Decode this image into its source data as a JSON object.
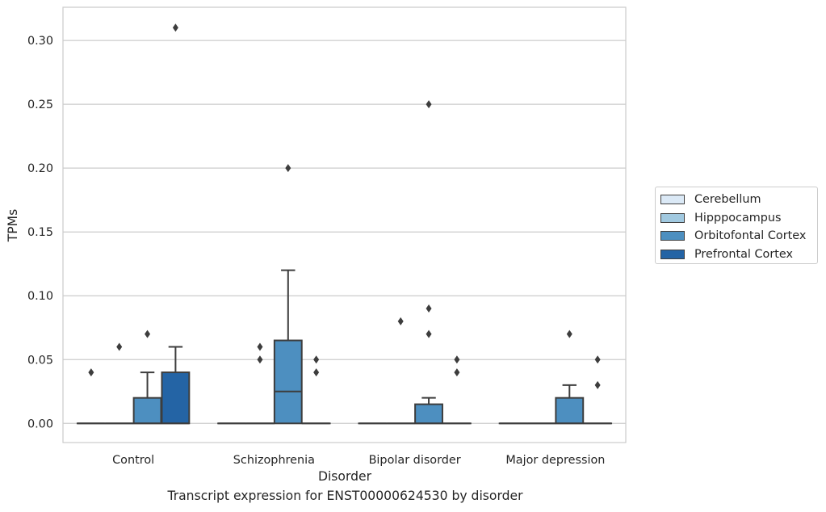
{
  "caption": "Transcript expression for ENST00000624530 by disorder",
  "chart_data": {
    "type": "box",
    "xlabel": "Disorder",
    "ylabel": "TPMs",
    "ylim": [
      -0.015,
      0.326
    ],
    "yticks": [
      "0.00",
      "0.05",
      "0.10",
      "0.15",
      "0.20",
      "0.25",
      "0.30"
    ],
    "grid": "horizontal",
    "legend_position": "right",
    "categories": [
      "Control",
      "Schizophrenia",
      "Bipolar disorder",
      "Major depression"
    ],
    "series": [
      {
        "name": "Cerebellum",
        "color": "#dbe9f6"
      },
      {
        "name": "Hipppocampus",
        "color": "#a1c9e0"
      },
      {
        "name": "Orbitofontal Cortex",
        "color": "#4d8fc0"
      },
      {
        "name": "Prefrontal Cortex",
        "color": "#2464a5"
      }
    ],
    "boxes": [
      {
        "category": 0,
        "series": 0,
        "q1": 0,
        "median": 0,
        "q3": 0,
        "whisker_low": 0,
        "whisker_high": 0,
        "outliers": [
          0.04
        ]
      },
      {
        "category": 0,
        "series": 1,
        "q1": 0,
        "median": 0,
        "q3": 0,
        "whisker_low": 0,
        "whisker_high": 0,
        "outliers": [
          0.06
        ]
      },
      {
        "category": 0,
        "series": 2,
        "q1": 0,
        "median": 0,
        "q3": 0.02,
        "whisker_low": 0,
        "whisker_high": 0.04,
        "outliers": [
          0.07
        ]
      },
      {
        "category": 0,
        "series": 3,
        "q1": 0,
        "median": 0,
        "q3": 0.04,
        "whisker_low": 0,
        "whisker_high": 0.06,
        "outliers": [
          0.31
        ]
      },
      {
        "category": 1,
        "series": 0,
        "q1": 0,
        "median": 0,
        "q3": 0,
        "whisker_low": 0,
        "whisker_high": 0,
        "outliers": []
      },
      {
        "category": 1,
        "series": 1,
        "q1": 0,
        "median": 0,
        "q3": 0,
        "whisker_low": 0,
        "whisker_high": 0,
        "outliers": [
          0.05,
          0.06
        ]
      },
      {
        "category": 1,
        "series": 2,
        "q1": 0,
        "median": 0.025,
        "q3": 0.065,
        "whisker_low": 0,
        "whisker_high": 0.12,
        "outliers": [
          0.2
        ]
      },
      {
        "category": 1,
        "series": 3,
        "q1": 0,
        "median": 0,
        "q3": 0,
        "whisker_low": 0,
        "whisker_high": 0,
        "outliers": [
          0.04,
          0.05
        ]
      },
      {
        "category": 2,
        "series": 0,
        "q1": 0,
        "median": 0,
        "q3": 0,
        "whisker_low": 0,
        "whisker_high": 0,
        "outliers": []
      },
      {
        "category": 2,
        "series": 1,
        "q1": 0,
        "median": 0,
        "q3": 0,
        "whisker_low": 0,
        "whisker_high": 0,
        "outliers": [
          0.08
        ]
      },
      {
        "category": 2,
        "series": 2,
        "q1": 0,
        "median": 0,
        "q3": 0.015,
        "whisker_low": 0,
        "whisker_high": 0.02,
        "outliers": [
          0.07,
          0.09,
          0.25
        ]
      },
      {
        "category": 2,
        "series": 3,
        "q1": 0,
        "median": 0,
        "q3": 0,
        "whisker_low": 0,
        "whisker_high": 0,
        "outliers": [
          0.04,
          0.05
        ]
      },
      {
        "category": 3,
        "series": 0,
        "q1": 0,
        "median": 0,
        "q3": 0,
        "whisker_low": 0,
        "whisker_high": 0,
        "outliers": []
      },
      {
        "category": 3,
        "series": 1,
        "q1": 0,
        "median": 0,
        "q3": 0,
        "whisker_low": 0,
        "whisker_high": 0,
        "outliers": []
      },
      {
        "category": 3,
        "series": 2,
        "q1": 0,
        "median": 0,
        "q3": 0.02,
        "whisker_low": 0,
        "whisker_high": 0.03,
        "outliers": [
          0.07
        ]
      },
      {
        "category": 3,
        "series": 3,
        "q1": 0,
        "median": 0,
        "q3": 0,
        "whisker_low": 0,
        "whisker_high": 0,
        "outliers": [
          0.03,
          0.05
        ]
      }
    ]
  }
}
